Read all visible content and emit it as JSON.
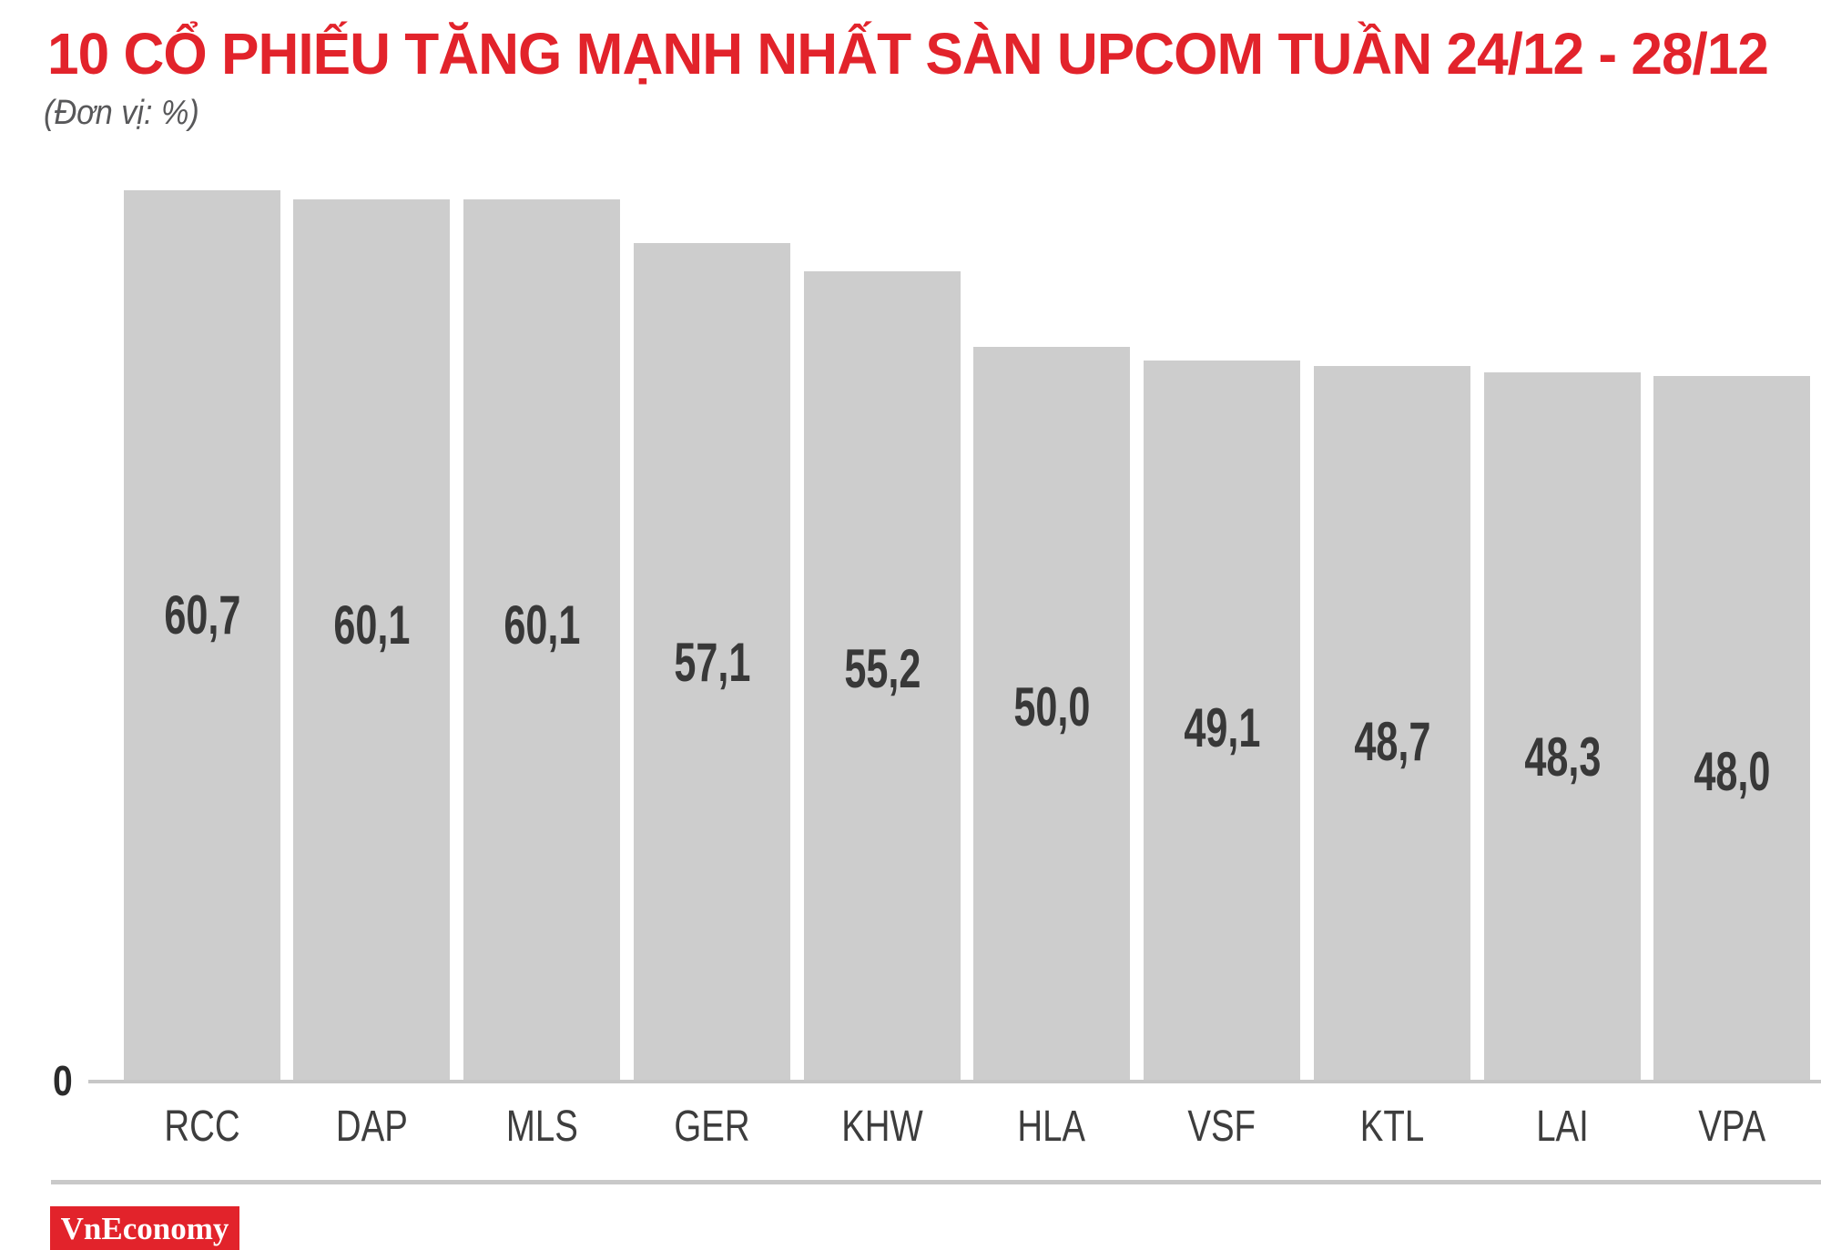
{
  "header": {
    "title": "10 CỔ PHIẾU TĂNG MẠNH NHẤT SÀN UPCOM TUẦN 24/12 - 28/12",
    "subtitle": "(Đơn vị: %)"
  },
  "chart_data": {
    "type": "bar",
    "title": "10 CỔ PHIẾU TĂNG MẠNH NHẤT SÀN UPCOM TUẦN 24/12 - 28/12",
    "unit_note": "(Đơn vị: %)",
    "categories": [
      "RCC",
      "DAP",
      "MLS",
      "GER",
      "KHW",
      "HLA",
      "VSF",
      "KTL",
      "LAI",
      "VPA"
    ],
    "values": [
      60.7,
      60.1,
      60.1,
      57.1,
      55.2,
      50.0,
      49.1,
      48.7,
      48.3,
      48.0
    ],
    "value_labels": [
      "60,7",
      "60,1",
      "60,1",
      "57,1",
      "55,2",
      "50,0",
      "49,1",
      "48,7",
      "48,3",
      "48,0"
    ],
    "xlabel": "",
    "ylabel": "",
    "ylim": [
      0,
      62.5
    ],
    "y_axis_ticks": [
      "0"
    ],
    "grid": false,
    "legend": "none",
    "bar_color": "#cdcdcd",
    "value_label_color": "#383838",
    "value_label_position": "inside-bar"
  },
  "y_axis": {
    "zero_label": "0"
  },
  "branding": {
    "logo_text": "VnEconomy"
  },
  "colors": {
    "accent_red": "#e2232b",
    "bar_gray": "#cdcdcd",
    "value_text": "#383838",
    "tick_text": "#3d3d3d",
    "subtitle_text": "#58585a",
    "axis_line": "#c7c7c7",
    "divider": "#c9c9c9",
    "logo_bg": "#e2232b",
    "logo_text": "#ffffff",
    "zero_text": "#2b2b2b"
  }
}
